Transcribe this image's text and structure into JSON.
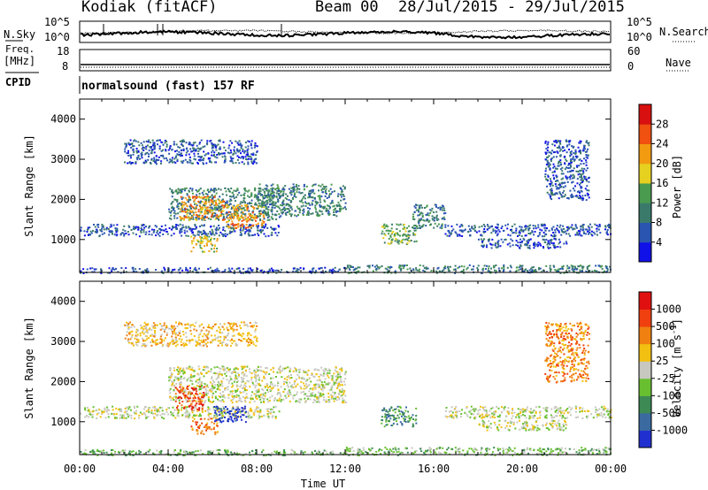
{
  "header": {
    "radar": "Kodiak (fitACF)",
    "beam": "Beam 00",
    "dates": "28/Jul/2015 - 29/Jul/2015"
  },
  "sky_panel": {
    "left_label": "N.Sky",
    "right_label": "N.Search",
    "left_ticks": [
      "10^5",
      "10^0"
    ],
    "right_ticks": [
      "10^5",
      "10^0"
    ]
  },
  "freq_panel": {
    "left_label_1": "Freq.",
    "left_label_2": "[MHz]",
    "right_label": "Nave",
    "left_ticks": [
      "18",
      "8"
    ],
    "right_ticks": [
      "60",
      "0"
    ]
  },
  "cpid": {
    "label": "CPID",
    "value": "normalsound (fast) 157 RF"
  },
  "chart_data": [
    {
      "type": "heatmap",
      "name": "power",
      "ylabel": "Slant Range [km]",
      "yticks": [
        "1000",
        "2000",
        "3000",
        "4000"
      ],
      "ylim": [
        180,
        4500
      ],
      "xlabel": "Time UT",
      "xlim": [
        0,
        24
      ],
      "xticks": [
        "00:00",
        "04:00",
        "08:00",
        "12:00",
        "16:00",
        "20:00",
        "00:00"
      ],
      "colorbar": {
        "label": "Power [dB]",
        "ticks": [
          "4",
          "8",
          "12",
          "16",
          "20",
          "24",
          "28"
        ],
        "colors": [
          "#1010e8",
          "#2a55b0",
          "#3a7a6a",
          "#4a9a50",
          "#e6d020",
          "#f29a10",
          "#f05010",
          "#d81010"
        ]
      },
      "regions": [
        {
          "t0": 0,
          "t1": 12,
          "r0": 180,
          "r1": 320,
          "level": 1
        },
        {
          "t0": 12,
          "t1": 24,
          "r0": 180,
          "r1": 380,
          "level": 2
        },
        {
          "t0": 0,
          "t1": 9,
          "r0": 1100,
          "r1": 1400,
          "level": 1
        },
        {
          "t0": 4,
          "t1": 9,
          "r0": 1500,
          "r1": 2300,
          "level": 2
        },
        {
          "t0": 4.5,
          "t1": 6.5,
          "r0": 1500,
          "r1": 2100,
          "level": 5
        },
        {
          "t0": 5,
          "t1": 6.2,
          "r0": 700,
          "r1": 1100,
          "level": 4
        },
        {
          "t0": 6.6,
          "t1": 8.3,
          "r0": 1300,
          "r1": 1900,
          "level": 5
        },
        {
          "t0": 8,
          "t1": 12,
          "r0": 1600,
          "r1": 2400,
          "level": 2
        },
        {
          "t0": 13.6,
          "t1": 15.2,
          "r0": 900,
          "r1": 1400,
          "level": 3
        },
        {
          "t0": 15,
          "t1": 16.5,
          "r0": 1300,
          "r1": 1900,
          "level": 2
        },
        {
          "t0": 16.5,
          "t1": 24,
          "r0": 1100,
          "r1": 1400,
          "level": 1
        },
        {
          "t0": 18,
          "t1": 22,
          "r0": 800,
          "r1": 1050,
          "level": 1
        },
        {
          "t0": 2,
          "t1": 8,
          "r0": 2900,
          "r1": 3500,
          "level": 1
        },
        {
          "t0": 21,
          "t1": 23,
          "r0": 2000,
          "r1": 3500,
          "level": 1
        }
      ]
    },
    {
      "type": "heatmap",
      "name": "velocity",
      "ylabel": "Slant Range [km]",
      "yticks": [
        "1000",
        "2000",
        "3000",
        "4000"
      ],
      "ylim": [
        180,
        4500
      ],
      "xlabel": "Time UT",
      "xlim": [
        0,
        24
      ],
      "xticks": [
        "00:00",
        "04:00",
        "08:00",
        "12:00",
        "16:00",
        "20:00",
        "00:00"
      ],
      "colorbar": {
        "label": "Velocity [m s",
        "label_sup": "-1",
        "label_end": "]",
        "ticks": [
          "1000",
          "500",
          "100",
          "25",
          "-25",
          "-100",
          "-500",
          "-1000"
        ],
        "colors": [
          "#2030d0",
          "#3a6aa0",
          "#3d8a55",
          "#68c030",
          "#c8c8c0",
          "#f2c010",
          "#f08010",
          "#f04010",
          "#e01010"
        ]
      },
      "regions": [
        {
          "t0": 0,
          "t1": 12,
          "r0": 180,
          "r1": 320,
          "level": 3
        },
        {
          "t0": 12,
          "t1": 24,
          "r0": 180,
          "r1": 380,
          "level": 3
        },
        {
          "t0": 0,
          "t1": 9,
          "r0": 1100,
          "r1": 1400,
          "level": 4
        },
        {
          "t0": 4,
          "t1": 12,
          "r0": 1500,
          "r1": 2400,
          "level": 4
        },
        {
          "t0": 4.3,
          "t1": 5.6,
          "r0": 1300,
          "r1": 1900,
          "level": 7
        },
        {
          "t0": 5,
          "t1": 6.2,
          "r0": 700,
          "r1": 1100,
          "level": 6
        },
        {
          "t0": 6,
          "t1": 7.5,
          "r0": 1000,
          "r1": 1400,
          "level": 0
        },
        {
          "t0": 13.6,
          "t1": 15.2,
          "r0": 900,
          "r1": 1400,
          "level": 2
        },
        {
          "t0": 16.5,
          "t1": 24,
          "r0": 1100,
          "r1": 1400,
          "level": 4
        },
        {
          "t0": 18,
          "t1": 22,
          "r0": 800,
          "r1": 1050,
          "level": 4
        },
        {
          "t0": 2,
          "t1": 8,
          "r0": 2900,
          "r1": 3500,
          "level": 5
        },
        {
          "t0": 21,
          "t1": 23,
          "r0": 2000,
          "r1": 3500,
          "level": 6
        }
      ]
    }
  ]
}
